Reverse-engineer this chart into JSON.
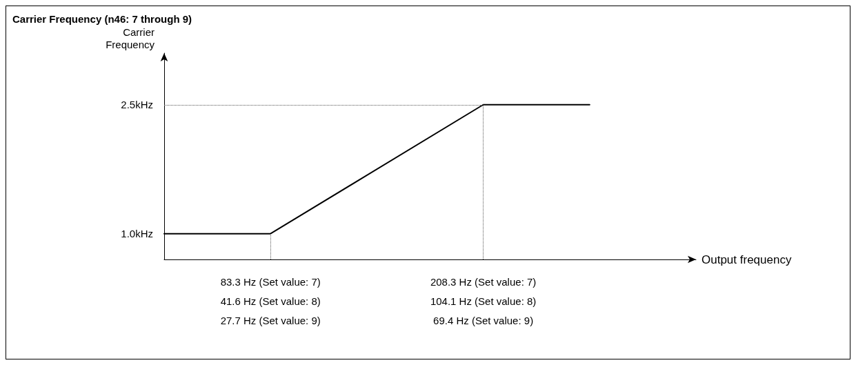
{
  "chart_data": {
    "type": "line",
    "title": "Carrier Frequency (n46: 7 through 9)",
    "xlabel": "Output frequency",
    "ylabel": "Carrier\nFrequency",
    "categories": [
      null,
      "83.3 Hz (Set value: 7)\n41.6 Hz (Set value: 8)\n27.7 Hz (Set value: 9)",
      null,
      "208.3 Hz (Set value: 7)\n104.1 Hz (Set value: 8)\n69.4 Hz (Set value: 9)",
      null,
      null
    ],
    "series": [
      {
        "color": "#000000",
        "values": [
          1.0,
          1.0,
          null,
          2.5,
          2.5,
          null
        ]
      }
    ],
    "ylim": [
      0.7,
      3.1
    ],
    "yticks": [
      {
        "value": 1.0,
        "label": "1.0kHz"
      },
      {
        "value": 2.5,
        "label": "2.5kHz"
      }
    ],
    "ref_lines": [
      {
        "axis": "x",
        "value": "83.3 Hz (Set value: 7)\n41.6 Hz (Set value: 8)\n27.7 Hz (Set value: 9)",
        "line_style": "dotted",
        "color": "#555555"
      },
      {
        "axis": "x",
        "value": "208.3 Hz (Set value: 7)\n104.1 Hz (Set value: 8)\n69.4 Hz (Set value: 9)",
        "line_style": "dotted",
        "color": "#555555"
      },
      {
        "axis": "y",
        "value": 2.5,
        "line_style": "dotted",
        "color": "#555555"
      }
    ],
    "marker": "none",
    "line_style": "solid",
    "grid": false
  }
}
